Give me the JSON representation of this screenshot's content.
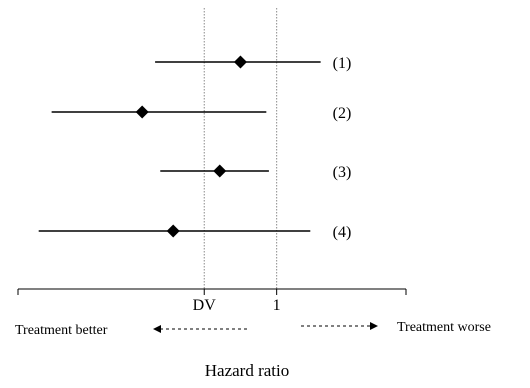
{
  "chart_data": {
    "type": "forest",
    "xlabel": "Hazard ratio",
    "reference_lines": [
      {
        "label": "DV",
        "value": 0.72
      },
      {
        "label": "1",
        "value": 1.0
      }
    ],
    "series": [
      {
        "label": "(1)",
        "estimate": 0.86,
        "lower": 0.53,
        "upper": 1.17
      },
      {
        "label": "(2)",
        "estimate": 0.48,
        "lower": 0.13,
        "upper": 0.96
      },
      {
        "label": "(3)",
        "estimate": 0.78,
        "lower": 0.55,
        "upper": 0.97
      },
      {
        "label": "(4)",
        "estimate": 0.6,
        "lower": 0.08,
        "upper": 1.13
      }
    ],
    "xlim": [
      0.0,
      1.5
    ],
    "direction_labels": {
      "left": "Treatment better",
      "right": "Treatment worse"
    },
    "grid": false,
    "legend": false
  },
  "colors": {
    "line": "#000000",
    "reference": "#8a8a8a"
  }
}
